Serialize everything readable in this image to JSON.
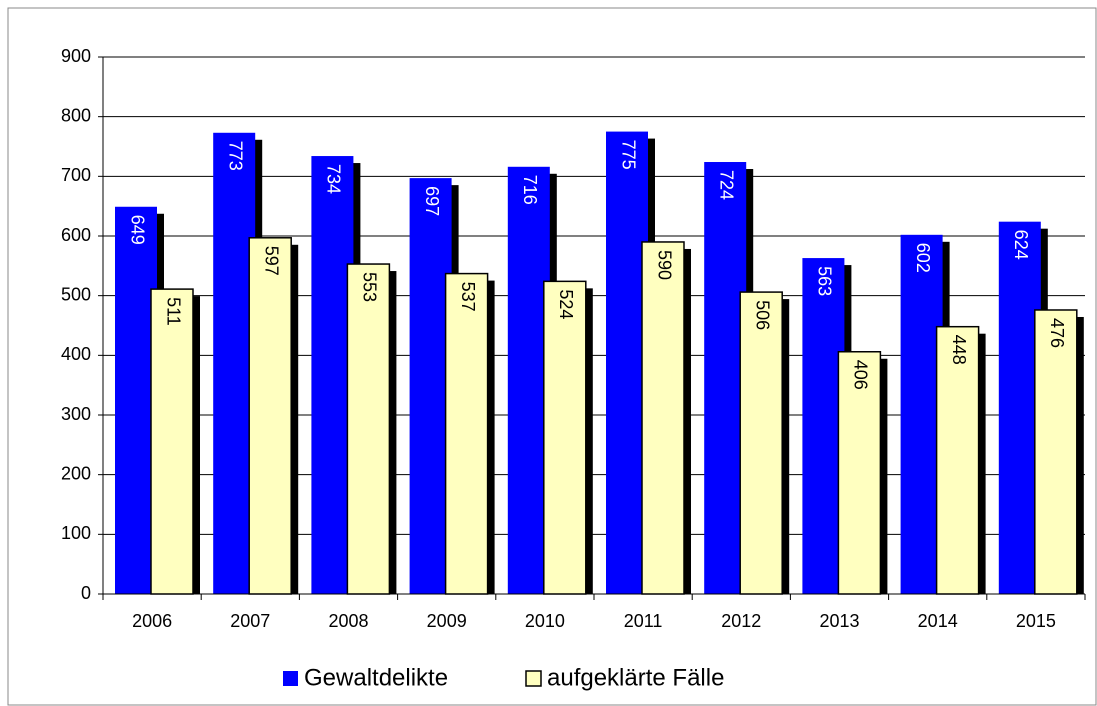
{
  "chart_data": {
    "type": "bar",
    "categories": [
      "2006",
      "2007",
      "2008",
      "2009",
      "2010",
      "2011",
      "2012",
      "2013",
      "2014",
      "2015"
    ],
    "series": [
      {
        "name": "Gewaltdelikte",
        "color": "#0000ff",
        "values": [
          649,
          773,
          734,
          697,
          716,
          775,
          724,
          563,
          602,
          624
        ]
      },
      {
        "name": "aufgeklärte Fälle",
        "color": "#ffffc0",
        "values": [
          511,
          597,
          553,
          537,
          524,
          590,
          506,
          406,
          448,
          476
        ]
      }
    ],
    "ylim": [
      0,
      900
    ],
    "yticks": [
      0,
      100,
      200,
      300,
      400,
      500,
      600,
      700,
      800,
      900
    ],
    "grid": true
  }
}
